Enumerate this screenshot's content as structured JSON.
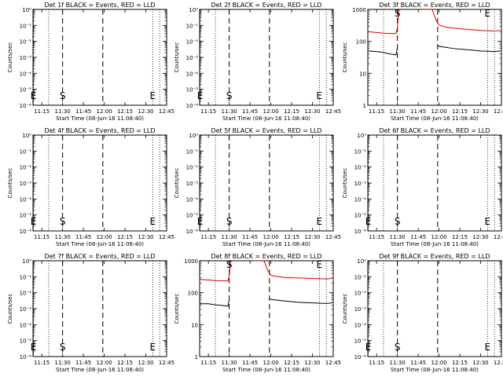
{
  "chart_data": [
    {
      "type": "line",
      "title": "Det 1f BLACK = Events, RED = LLD",
      "xlabel": "Start Time (08-Jun-16 11:08:40)",
      "ylabel": "Counts/sec",
      "x_ticks": [
        "11:15",
        "11:30",
        "11:45",
        "12:00",
        "12:15",
        "12:30",
        "12:45"
      ],
      "y_ticks": [
        "10⁰",
        "10⁻¹",
        "10⁻²",
        "10⁻³",
        "10⁻⁴",
        "10⁻⁵",
        "10⁻⁶"
      ],
      "y_scale": "log",
      "ylim_exponent": [
        -6,
        0
      ],
      "markers": [
        {
          "label": "E",
          "time": "11:09",
          "style": "dotted"
        },
        {
          "label": "S",
          "time": "11:30",
          "style": "dashed"
        },
        {
          "label": "",
          "time": "11:59",
          "style": "dashed"
        },
        {
          "label": "E",
          "time": "12:35",
          "style": "dotted"
        }
      ],
      "dotted_lines": [
        "11:09",
        "11:20",
        "12:35",
        "12:40"
      ],
      "series": []
    },
    {
      "type": "line",
      "title": "Det 2f BLACK = Events, RED = LLD",
      "xlabel": "Start Time (08-Jun-16 11:08:40)",
      "ylabel": "Counts/sec",
      "x_ticks": [
        "11:15",
        "11:30",
        "11:45",
        "12:00",
        "12:15",
        "12:30",
        "12:45"
      ],
      "y_ticks": [
        "10⁰",
        "10⁻¹",
        "10⁻²",
        "10⁻³",
        "10⁻⁴",
        "10⁻⁵",
        "10⁻⁶"
      ],
      "y_scale": "log",
      "ylim_exponent": [
        -6,
        0
      ],
      "markers": [
        {
          "label": "E",
          "time": "11:09",
          "style": "dotted"
        },
        {
          "label": "S",
          "time": "11:30",
          "style": "dashed"
        },
        {
          "label": "",
          "time": "11:59",
          "style": "dashed"
        },
        {
          "label": "E",
          "time": "12:35",
          "style": "dotted"
        }
      ],
      "dotted_lines": [
        "11:09",
        "11:20",
        "12:35",
        "12:40"
      ],
      "series": []
    },
    {
      "type": "line",
      "title": "Det 3f BLACK = Events, RED = LLD",
      "xlabel": "Start Time (08-Jun-16 11:08:40)",
      "ylabel": "Counts/sec",
      "x_ticks": [
        "11:15",
        "11:30",
        "11:45",
        "12:00",
        "12:15",
        "12:30",
        "12:45"
      ],
      "y_ticks": [
        "1",
        "10",
        "100",
        "1000"
      ],
      "y_scale": "log",
      "ylim": [
        1,
        1000
      ],
      "markers": [
        {
          "label": "S",
          "time": "11:30",
          "style": "dashed"
        },
        {
          "label": "",
          "time": "11:59",
          "style": "dashed"
        },
        {
          "label": "E",
          "time": "12:35",
          "style": "dotted"
        }
      ],
      "dotted_lines": [
        "11:20",
        "12:35",
        "12:40"
      ],
      "series": [
        {
          "color": "#e00000",
          "segments": [
            {
              "x": [
                "11:09",
                "11:15",
                "11:20",
                "11:25",
                "11:29",
                "11:30",
                "11:31"
              ],
              "y": [
                200,
                190,
                180,
                175,
                175,
                270,
                1000
              ]
            },
            {
              "x": [
                "11:48",
                "11:55",
                "11:58",
                "12:00",
                "12:05",
                "12:10",
                "12:20",
                "12:30",
                "12:40",
                "12:44"
              ],
              "y": [
                1000,
                1000,
                450,
                320,
                280,
                260,
                240,
                220,
                210,
                220
              ]
            }
          ]
        },
        {
          "color": "#000000",
          "segments": [
            {
              "x": [
                "11:09",
                "11:15",
                "11:20",
                "11:25",
                "11:29",
                "11:30"
              ],
              "y": [
                50,
                48,
                45,
                40,
                38,
                65
              ]
            },
            {
              "x": [
                "11:59",
                "12:00",
                "12:05",
                "12:10",
                "12:20",
                "12:30",
                "12:40",
                "12:44"
              ],
              "y": [
                75,
                70,
                65,
                60,
                55,
                50,
                48,
                50
              ]
            }
          ]
        }
      ]
    },
    {
      "type": "line",
      "title": "Det 4f BLACK = Events, RED = LLD",
      "xlabel": "Start Time (08-Jun-16 11:08:40)",
      "ylabel": "Counts/sec",
      "x_ticks": [
        "11:15",
        "11:30",
        "11:45",
        "12:00",
        "12:15",
        "12:30",
        "12:45"
      ],
      "y_ticks": [
        "10⁰",
        "10⁻¹",
        "10⁻²",
        "10⁻³",
        "10⁻⁴",
        "10⁻⁵",
        "10⁻⁶"
      ],
      "y_scale": "log",
      "ylim_exponent": [
        -6,
        0
      ],
      "markers": [
        {
          "label": "E",
          "time": "11:09",
          "style": "dotted"
        },
        {
          "label": "S",
          "time": "11:30",
          "style": "dashed"
        },
        {
          "label": "",
          "time": "11:59",
          "style": "dashed"
        },
        {
          "label": "E",
          "time": "12:35",
          "style": "dotted"
        }
      ],
      "dotted_lines": [
        "11:09",
        "11:20",
        "12:35",
        "12:40"
      ],
      "series": []
    },
    {
      "type": "line",
      "title": "Det 5f BLACK = Events, RED = LLD",
      "xlabel": "Start Time (08-Jun-16 11:08:40)",
      "ylabel": "Counts/sec",
      "x_ticks": [
        "11:15",
        "11:30",
        "11:45",
        "12:00",
        "12:15",
        "12:30",
        "12:45"
      ],
      "y_ticks": [
        "10⁰",
        "10⁻¹",
        "10⁻²",
        "10⁻³",
        "10⁻⁴",
        "10⁻⁵",
        "10⁻⁶"
      ],
      "y_scale": "log",
      "ylim_exponent": [
        -6,
        0
      ],
      "markers": [
        {
          "label": "E",
          "time": "11:09",
          "style": "dotted"
        },
        {
          "label": "S",
          "time": "11:30",
          "style": "dashed"
        },
        {
          "label": "",
          "time": "11:59",
          "style": "dashed"
        },
        {
          "label": "E",
          "time": "12:35",
          "style": "dotted"
        }
      ],
      "dotted_lines": [
        "11:09",
        "11:20",
        "12:35",
        "12:40"
      ],
      "series": []
    },
    {
      "type": "line",
      "title": "Det 6f BLACK = Events, RED = LLD",
      "xlabel": "Start Time (08-Jun-16 11:08:40)",
      "ylabel": "Counts/sec",
      "x_ticks": [
        "11:15",
        "11:30",
        "11:45",
        "12:00",
        "12:15",
        "12:30",
        "12:45"
      ],
      "y_ticks": [
        "10⁰",
        "10⁻¹",
        "10⁻²",
        "10⁻³",
        "10⁻⁴",
        "10⁻⁵",
        "10⁻⁶"
      ],
      "y_scale": "log",
      "ylim_exponent": [
        -6,
        0
      ],
      "markers": [
        {
          "label": "E",
          "time": "11:09",
          "style": "dotted"
        },
        {
          "label": "S",
          "time": "11:30",
          "style": "dashed"
        },
        {
          "label": "",
          "time": "11:59",
          "style": "dashed"
        },
        {
          "label": "E",
          "time": "12:35",
          "style": "dotted"
        }
      ],
      "dotted_lines": [
        "11:09",
        "11:20",
        "12:35",
        "12:40"
      ],
      "series": []
    },
    {
      "type": "line",
      "title": "Det 7f BLACK = Events, RED = LLD",
      "xlabel": "Start Time (08-Jun-16 11:08:40)",
      "ylabel": "Counts/sec",
      "x_ticks": [
        "11:15",
        "11:30",
        "11:45",
        "12:00",
        "12:15",
        "12:30",
        "12:45"
      ],
      "y_ticks": [
        "10⁰",
        "10⁻¹",
        "10⁻²",
        "10⁻³",
        "10⁻⁴",
        "10⁻⁵",
        "10⁻⁶"
      ],
      "y_scale": "log",
      "ylim_exponent": [
        -6,
        0
      ],
      "markers": [
        {
          "label": "E",
          "time": "11:09",
          "style": "dotted"
        },
        {
          "label": "S",
          "time": "11:30",
          "style": "dashed"
        },
        {
          "label": "",
          "time": "11:59",
          "style": "dashed"
        },
        {
          "label": "E",
          "time": "12:35",
          "style": "dotted"
        }
      ],
      "dotted_lines": [
        "11:09",
        "11:20",
        "12:35",
        "12:40"
      ],
      "series": []
    },
    {
      "type": "line",
      "title": "Det 8f BLACK = Events, RED = LLD",
      "xlabel": "Start Time (08-Jun-16 11:08:40)",
      "ylabel": "Counts/sec",
      "x_ticks": [
        "11:15",
        "11:30",
        "11:45",
        "12:00",
        "12:15",
        "12:30",
        "12:45"
      ],
      "y_ticks": [
        "1",
        "10",
        "100",
        "1000"
      ],
      "y_scale": "log",
      "ylim": [
        1,
        1000
      ],
      "markers": [
        {
          "label": "S",
          "time": "11:30",
          "style": "dashed"
        },
        {
          "label": "",
          "time": "11:59",
          "style": "dashed"
        },
        {
          "label": "E",
          "time": "12:35",
          "style": "dotted"
        }
      ],
      "dotted_lines": [
        "11:20",
        "12:35",
        "12:40"
      ],
      "series": [
        {
          "color": "#e00000",
          "segments": [
            {
              "x": [
                "11:09",
                "11:15",
                "11:20",
                "11:25",
                "11:29",
                "11:30",
                "11:31"
              ],
              "y": [
                260,
                250,
                240,
                235,
                235,
                330,
                1000
              ]
            },
            {
              "x": [
                "11:48",
                "11:55",
                "11:58",
                "12:00",
                "12:05",
                "12:10",
                "12:20",
                "12:30",
                "12:40",
                "12:44"
              ],
              "y": [
                1000,
                1000,
                480,
                350,
                320,
                300,
                290,
                280,
                270,
                280
              ]
            }
          ]
        },
        {
          "color": "#000000",
          "segments": [
            {
              "x": [
                "11:09",
                "11:15",
                "11:20",
                "11:25",
                "11:29",
                "11:30"
              ],
              "y": [
                45,
                45,
                42,
                40,
                38,
                60
              ]
            },
            {
              "x": [
                "11:59",
                "12:00",
                "12:05",
                "12:10",
                "12:20",
                "12:30",
                "12:40",
                "12:44"
              ],
              "y": [
                65,
                62,
                58,
                55,
                50,
                48,
                46,
                48
              ]
            }
          ]
        }
      ]
    },
    {
      "type": "line",
      "title": "Det 9f BLACK = Events, RED = LLD",
      "xlabel": "Start Time (08-Jun-16 11:08:40)",
      "ylabel": "Counts/sec",
      "x_ticks": [
        "11:15",
        "11:30",
        "11:45",
        "12:00",
        "12:15",
        "12:30",
        "12:45"
      ],
      "y_ticks": [
        "10⁰",
        "10⁻¹",
        "10⁻²",
        "10⁻³",
        "10⁻⁴",
        "10⁻⁵",
        "10⁻⁶"
      ],
      "y_scale": "log",
      "ylim_exponent": [
        -6,
        0
      ],
      "markers": [
        {
          "label": "E",
          "time": "11:09",
          "style": "dotted"
        },
        {
          "label": "S",
          "time": "11:30",
          "style": "dashed"
        },
        {
          "label": "",
          "time": "11:59",
          "style": "dashed"
        },
        {
          "label": "E",
          "time": "12:35",
          "style": "dotted"
        }
      ],
      "dotted_lines": [
        "11:09",
        "11:20",
        "12:35",
        "12:40"
      ],
      "series": []
    }
  ]
}
